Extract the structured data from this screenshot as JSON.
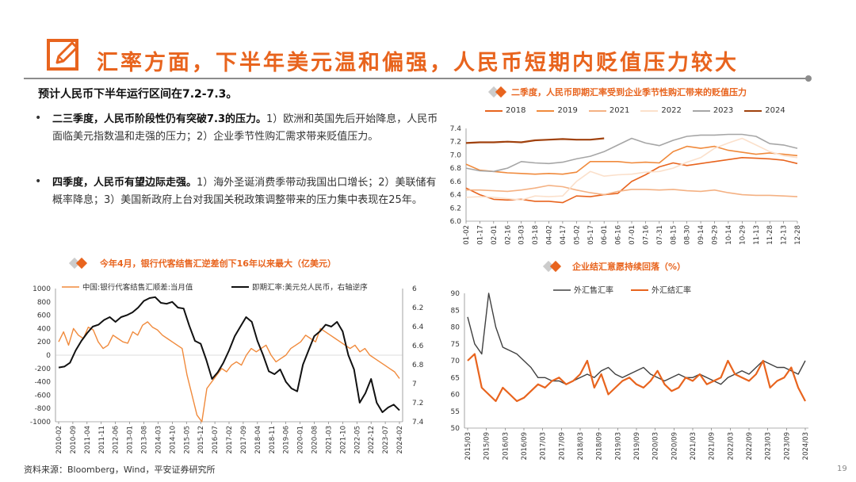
{
  "page": {
    "title": "汇率方面，下半年美元温和偏强，人民币短期内贬值压力较大",
    "lead": "预计人民币下半年运行区间在7.2-7.3。",
    "bullets": [
      {
        "bold": "二三季度，人民币阶段性仍有突破7.3的压力。",
        "text": "1）欧洲和英国先后开始降息，人民币面临美元指数温和走强的压力；2）企业季节性购汇需求带来贬值压力。"
      },
      {
        "bold": "四季度，人民币有望边际走强。",
        "text": "1）海外圣诞消费季带动我国出口增长；2）美联储有概率降息；3）美国新政府上台对我国关税政策调整带来的压力集中表现在25年。"
      }
    ],
    "footer_source": "资料来源：Bloomberg，Wind，平安证券研究所",
    "page_number": "19"
  },
  "colors": {
    "accent": "#e8641e",
    "gray_diamond": "#cccccc"
  },
  "chart_data": [
    {
      "id": "seasonal",
      "type": "line",
      "title": "二季度，人民币即期汇率受到企业季节性购汇带来的贬值压力",
      "x_ticks": [
        "01-02",
        "01-17",
        "02-01",
        "02-16",
        "03-03",
        "03-18",
        "04-02",
        "04-17",
        "05-02",
        "05-17",
        "06-01",
        "06-16",
        "07-01",
        "07-16",
        "07-31",
        "08-15",
        "08-30",
        "09-14",
        "09-29",
        "10-14",
        "10-29",
        "11-13",
        "11-28",
        "12-13",
        "12-28"
      ],
      "y_ticks": [
        "7.4",
        "7.2",
        "7.0",
        "6.8",
        "6.6",
        "6.4",
        "6.2",
        "6.0"
      ],
      "ylim": [
        6.0,
        7.4
      ],
      "series": [
        {
          "name": "2018",
          "color": "#e8641e",
          "values": [
            6.5,
            6.4,
            6.33,
            6.32,
            6.33,
            6.3,
            6.3,
            6.28,
            6.38,
            6.37,
            6.4,
            6.42,
            6.6,
            6.7,
            6.82,
            6.88,
            6.84,
            6.87,
            6.9,
            6.93,
            6.96,
            6.95,
            6.94,
            6.92,
            6.87
          ]
        },
        {
          "name": "2019",
          "color": "#f08a3c",
          "values": [
            6.86,
            6.77,
            6.75,
            6.73,
            6.72,
            6.71,
            6.72,
            6.71,
            6.74,
            6.9,
            6.9,
            6.9,
            6.88,
            6.89,
            6.88,
            7.05,
            7.13,
            7.1,
            7.13,
            7.07,
            7.04,
            7.01,
            7.03,
            7.01,
            6.99
          ]
        },
        {
          "name": "2021",
          "color": "#f4b183",
          "values": [
            6.47,
            6.47,
            6.46,
            6.45,
            6.47,
            6.5,
            6.54,
            6.52,
            6.47,
            6.43,
            6.4,
            6.45,
            6.48,
            6.48,
            6.47,
            6.48,
            6.46,
            6.45,
            6.47,
            6.43,
            6.4,
            6.39,
            6.39,
            6.38,
            6.37
          ]
        },
        {
          "name": "2022",
          "color": "#fbe0cb",
          "values": [
            6.36,
            6.37,
            6.36,
            6.34,
            6.32,
            6.38,
            6.37,
            6.38,
            6.6,
            6.75,
            6.68,
            6.7,
            6.71,
            6.74,
            6.75,
            6.8,
            6.89,
            6.96,
            7.1,
            7.18,
            7.25,
            7.15,
            7.05,
            6.99,
            6.96
          ]
        },
        {
          "name": "2023",
          "color": "#a6a6a6",
          "values": [
            6.8,
            6.76,
            6.75,
            6.8,
            6.9,
            6.88,
            6.87,
            6.89,
            6.94,
            6.98,
            7.05,
            7.15,
            7.25,
            7.18,
            7.14,
            7.22,
            7.28,
            7.3,
            7.3,
            7.31,
            7.31,
            7.28,
            7.17,
            7.15,
            7.1
          ]
        },
        {
          "name": "2024",
          "color": "#a0410d",
          "values": [
            7.18,
            7.19,
            7.19,
            7.2,
            7.19,
            7.22,
            7.23,
            7.24,
            7.23,
            7.23,
            7.25
          ]
        }
      ]
    },
    {
      "id": "bank-settlement",
      "type": "line",
      "title": "今年4月，银行代客结售汇逆差创下16年以来最大（亿美元）",
      "legend": [
        "中国:银行代客结售汇顺差:当月值",
        "即期汇率:美元兑人民币，右轴逆序"
      ],
      "x_ticks": [
        "2010-02",
        "2010-09",
        "2011-04",
        "2011-11",
        "2012-06",
        "2013-01",
        "2013-08",
        "2014-03",
        "2014-10",
        "2015-05",
        "2015-12",
        "2016-07",
        "2017-02",
        "2017-09",
        "2018-04",
        "2018-11",
        "2019-06",
        "2020-01",
        "2020-08",
        "2021-03",
        "2021-10",
        "2022-05",
        "2022-12",
        "2023-07",
        "2024-02"
      ],
      "y_left_ticks": [
        "1000",
        "800",
        "600",
        "400",
        "200",
        "0",
        "-200",
        "-400",
        "-600",
        "-800",
        "-1000"
      ],
      "y_right_ticks": [
        "6",
        "6.2",
        "6.4",
        "6.6",
        "6.8",
        "7",
        "7.2",
        "7.4"
      ],
      "ylim_left": [
        -1000,
        1000
      ],
      "ylim_right_reversed": [
        6.0,
        7.4
      ],
      "series": [
        {
          "name": "中国:银行代客结售汇顺差:当月值",
          "axis": "left",
          "color": "#f08a3c",
          "values": [
            200,
            350,
            150,
            400,
            300,
            250,
            420,
            380,
            200,
            100,
            150,
            300,
            250,
            200,
            180,
            350,
            300,
            450,
            500,
            420,
            380,
            300,
            250,
            200,
            150,
            100,
            -300,
            -600,
            -900,
            -1000,
            -500,
            -400,
            -300,
            -200,
            -250,
            -150,
            -100,
            -150,
            0,
            100,
            50,
            100,
            150,
            0,
            -100,
            -50,
            0,
            100,
            150,
            200,
            300,
            250,
            200,
            400,
            350,
            300,
            250,
            200,
            150,
            100,
            150,
            50,
            100,
            0,
            -50,
            -100,
            -150,
            -200,
            -250,
            -350
          ]
        },
        {
          "name": "即期汇率:美元兑人民币，右轴逆序",
          "axis": "right",
          "color": "#111111",
          "values": [
            6.83,
            6.82,
            6.78,
            6.65,
            6.55,
            6.47,
            6.4,
            6.38,
            6.33,
            6.3,
            6.35,
            6.3,
            6.28,
            6.25,
            6.2,
            6.13,
            6.1,
            6.09,
            6.15,
            6.16,
            6.14,
            6.2,
            6.21,
            6.39,
            6.55,
            6.58,
            6.75,
            6.95,
            6.88,
            6.78,
            6.65,
            6.5,
            6.4,
            6.3,
            6.35,
            6.55,
            6.7,
            6.87,
            6.9,
            6.85,
            6.98,
            7.05,
            7.08,
            6.8,
            6.65,
            6.5,
            6.45,
            6.38,
            6.4,
            6.35,
            6.45,
            6.7,
            6.85,
            7.2,
            7.1,
            6.95,
            7.2,
            7.3,
            7.25,
            7.22,
            7.28
          ]
        }
      ]
    },
    {
      "id": "settlement-rate",
      "type": "line",
      "title": "企业结汇意愿持续回落（%）",
      "legend": [
        "外汇售汇率",
        "外汇结汇率"
      ],
      "x_ticks": [
        "2015/03",
        "2015/09",
        "2016/03",
        "2016/09",
        "2017/03",
        "2017/09",
        "2018/03",
        "2018/09",
        "2019/03",
        "2019/09",
        "2020/03",
        "2020/09",
        "2021/03",
        "2021/09",
        "2022/03",
        "2022/09",
        "2023/03",
        "2023/09",
        "2024/03"
      ],
      "y_ticks": [
        "90",
        "85",
        "80",
        "75",
        "70",
        "65",
        "60",
        "55",
        "50"
      ],
      "ylim": [
        50,
        90
      ],
      "series": [
        {
          "name": "外汇售汇率",
          "color": "#404040",
          "values": [
            83,
            75,
            72,
            90,
            80,
            74,
            73,
            72,
            70,
            68,
            65,
            65,
            64,
            64,
            63,
            64,
            65,
            66,
            65,
            67,
            68,
            66,
            65,
            66,
            67,
            68,
            66,
            65,
            64,
            65,
            66,
            65,
            65,
            66,
            65,
            64,
            63,
            65,
            66,
            67,
            66,
            68,
            70,
            69,
            68,
            68,
            67,
            66,
            70
          ]
        },
        {
          "name": "外汇结汇率",
          "color": "#e8641e",
          "values": [
            70,
            72,
            62,
            60,
            58,
            62,
            60,
            58,
            59,
            61,
            63,
            62,
            64,
            65,
            63,
            64,
            66,
            70,
            62,
            66,
            60,
            62,
            64,
            65,
            63,
            62,
            64,
            67,
            63,
            61,
            62,
            65,
            64,
            66,
            63,
            64,
            65,
            70,
            66,
            65,
            64,
            66,
            70,
            62,
            64,
            65,
            68,
            62,
            58
          ]
        }
      ]
    }
  ]
}
